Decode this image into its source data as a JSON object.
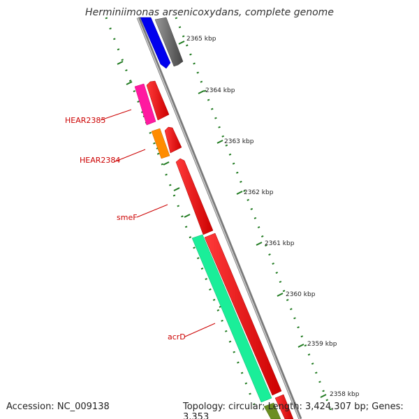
{
  "title": "Herminiimonas arsenicoxydans, complete genome",
  "footer": {
    "accession": "Accession: NC_009138",
    "summary": "Topology: circular; Length: 3,424,307 bp; Genes: 3,353"
  },
  "ticks": [
    "2365 kbp",
    "2364 kbp",
    "2363 kbp",
    "2362 kbp",
    "2361 kbp",
    "2360 kbp",
    "2359 kbp",
    "2358 kbp"
  ],
  "gene_labels": [
    "HEAR2385",
    "HEAR2384",
    "smeF",
    "acrD"
  ],
  "colors": {
    "backbone": "#888888",
    "tick_dots": "#1f7a1f",
    "label": "#cc0000",
    "cds": "#ff0000",
    "blue_feature": "#0000ee",
    "gray_feature": "#666666",
    "pink_feature": "#ff1aa0",
    "orange_feature": "#ff8c00",
    "teal_feature": "#1aee99",
    "olive_feature": "#6b8e23"
  }
}
